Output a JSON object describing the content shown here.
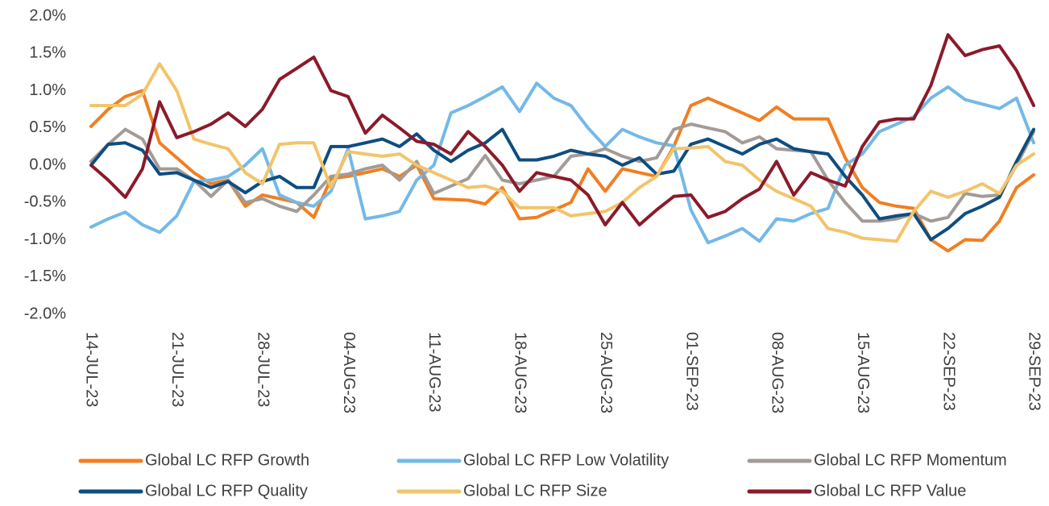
{
  "chart_data": {
    "type": "line",
    "categories": [
      "14-JUL-23",
      null,
      null,
      null,
      null,
      "21-JUL-23",
      null,
      null,
      null,
      null,
      "28-JUL-23",
      null,
      null,
      null,
      null,
      "04-AUG-23",
      null,
      null,
      null,
      null,
      "11-AUG-23",
      null,
      null,
      null,
      null,
      "18-AUG-23",
      null,
      null,
      null,
      null,
      "25-AUG-23",
      null,
      null,
      null,
      null,
      "01-SEP-23",
      null,
      null,
      null,
      null,
      "08-AUG-23",
      null,
      null,
      null,
      null,
      "15-AUG-23",
      null,
      null,
      null,
      null,
      "22-SEP-23",
      null,
      null,
      null,
      null,
      "29-SEP-23"
    ],
    "ylim": [
      -2,
      2
    ],
    "yticks": [
      {
        "value": -2,
        "label": "-2.0%"
      },
      {
        "value": -1.5,
        "label": "-1.5%"
      },
      {
        "value": -1,
        "label": "-1.0%"
      },
      {
        "value": -0.5,
        "label": "-0.5%"
      },
      {
        "value": 0,
        "label": "0.0%"
      },
      {
        "value": 0.5,
        "label": "0.5%"
      },
      {
        "value": 1,
        "label": "1.0%"
      },
      {
        "value": 1.5,
        "label": "1.5%"
      },
      {
        "value": 2,
        "label": "2.0%"
      }
    ],
    "grid": false,
    "legend": "bottom",
    "series": [
      {
        "name": "Global LC RFP Growth",
        "color": "#f07f22",
        "values": [
          0.52,
          0.75,
          0.92,
          1.0,
          0.3,
          0.1,
          -0.1,
          -0.25,
          -0.2,
          -0.55,
          -0.4,
          -0.45,
          -0.5,
          -0.7,
          -0.18,
          -0.15,
          -0.1,
          -0.05,
          -0.15,
          0.0,
          -0.45,
          -0.46,
          -0.47,
          -0.52,
          -0.3,
          -0.72,
          -0.7,
          -0.6,
          -0.5,
          -0.05,
          -0.35,
          -0.05,
          -0.1,
          -0.15,
          0.25,
          0.8,
          0.9,
          0.8,
          0.7,
          0.6,
          0.78,
          0.62,
          0.62,
          0.62,
          0.1,
          -0.3,
          -0.5,
          -0.55,
          -0.58,
          -1.0,
          -1.15,
          -1.0,
          -1.01,
          -0.75,
          -0.3,
          -0.13
        ]
      },
      {
        "name": "Global LC RFP Low Volatility",
        "color": "#74b9e6",
        "values": [
          -0.83,
          -0.72,
          -0.63,
          -0.8,
          -0.9,
          -0.68,
          -0.22,
          -0.2,
          -0.15,
          0.0,
          0.22,
          -0.4,
          -0.5,
          -0.55,
          -0.35,
          0.22,
          -0.72,
          -0.68,
          -0.62,
          -0.2,
          0.0,
          0.7,
          0.8,
          0.92,
          1.05,
          0.72,
          1.1,
          0.9,
          0.8,
          0.5,
          0.25,
          0.48,
          0.38,
          0.3,
          0.26,
          -0.6,
          -1.04,
          -0.95,
          -0.85,
          -1.02,
          -0.72,
          -0.75,
          -0.65,
          -0.58,
          0.0,
          0.15,
          0.45,
          0.55,
          0.65,
          0.9,
          1.05,
          0.88,
          0.82,
          0.76,
          0.9,
          0.3
        ]
      },
      {
        "name": "Global LC RFP Momentum",
        "color": "#a29b97",
        "values": [
          0.05,
          0.28,
          0.48,
          0.35,
          -0.05,
          -0.05,
          -0.2,
          -0.42,
          -0.2,
          -0.5,
          -0.45,
          -0.55,
          -0.62,
          -0.4,
          -0.15,
          -0.12,
          -0.05,
          0.0,
          -0.2,
          0.05,
          -0.38,
          -0.28,
          -0.18,
          0.13,
          -0.2,
          -0.25,
          -0.2,
          -0.15,
          0.12,
          0.15,
          0.22,
          0.12,
          0.05,
          0.1,
          0.48,
          0.55,
          0.5,
          0.45,
          0.3,
          0.38,
          0.22,
          0.2,
          0.18,
          -0.2,
          -0.5,
          -0.75,
          -0.75,
          -0.72,
          -0.65,
          -0.75,
          -0.7,
          -0.38,
          -0.42,
          -0.4,
          0.0,
          0.45
        ]
      },
      {
        "name": "Global LC RFP Quality",
        "color": "#0f4d7f",
        "values": [
          0.0,
          0.28,
          0.3,
          0.2,
          -0.12,
          -0.1,
          -0.2,
          -0.3,
          -0.22,
          -0.37,
          -0.22,
          -0.15,
          -0.3,
          -0.3,
          0.25,
          0.25,
          0.3,
          0.35,
          0.25,
          0.42,
          0.2,
          0.05,
          0.2,
          0.3,
          0.48,
          0.07,
          0.07,
          0.12,
          0.2,
          0.15,
          0.12,
          0.0,
          0.1,
          -0.12,
          -0.08,
          0.28,
          0.35,
          0.25,
          0.15,
          0.28,
          0.35,
          0.22,
          0.18,
          0.15,
          -0.15,
          -0.4,
          -0.72,
          -0.68,
          -0.65,
          -1.0,
          -0.85,
          -0.65,
          -0.55,
          -0.43,
          0.05,
          0.48
        ]
      },
      {
        "name": "Global LC RFP Size",
        "color": "#f2c46b",
        "values": [
          0.8,
          0.8,
          0.8,
          0.95,
          1.36,
          1.0,
          0.35,
          0.28,
          0.22,
          -0.1,
          -0.25,
          0.28,
          0.3,
          0.3,
          -0.3,
          0.18,
          0.15,
          0.12,
          0.15,
          0.0,
          -0.1,
          -0.2,
          -0.3,
          -0.28,
          -0.35,
          -0.57,
          -0.57,
          -0.57,
          -0.68,
          -0.65,
          -0.62,
          -0.5,
          -0.3,
          -0.15,
          0.22,
          0.23,
          0.25,
          0.05,
          0.0,
          -0.2,
          -0.35,
          -0.45,
          -0.55,
          -0.85,
          -0.9,
          -0.98,
          -1.0,
          -1.02,
          -0.62,
          -0.35,
          -0.43,
          -0.35,
          -0.25,
          -0.38,
          0.0,
          0.15
        ]
      },
      {
        "name": "Global LC RFP Value",
        "color": "#8b1a2a",
        "values": [
          0.0,
          -0.2,
          -0.43,
          -0.05,
          0.85,
          0.37,
          0.45,
          0.55,
          0.7,
          0.52,
          0.75,
          1.15,
          1.3,
          1.45,
          1.0,
          0.92,
          0.43,
          0.67,
          0.5,
          0.32,
          0.28,
          0.15,
          0.45,
          0.25,
          0.0,
          -0.35,
          -0.1,
          -0.15,
          -0.2,
          -0.4,
          -0.8,
          -0.5,
          -0.8,
          -0.6,
          -0.42,
          -0.4,
          -0.7,
          -0.62,
          -0.45,
          -0.32,
          0.05,
          -0.4,
          -0.1,
          -0.2,
          -0.28,
          0.25,
          0.58,
          0.62,
          0.62,
          1.07,
          1.75,
          1.47,
          1.55,
          1.6,
          1.27,
          0.8
        ]
      }
    ]
  }
}
